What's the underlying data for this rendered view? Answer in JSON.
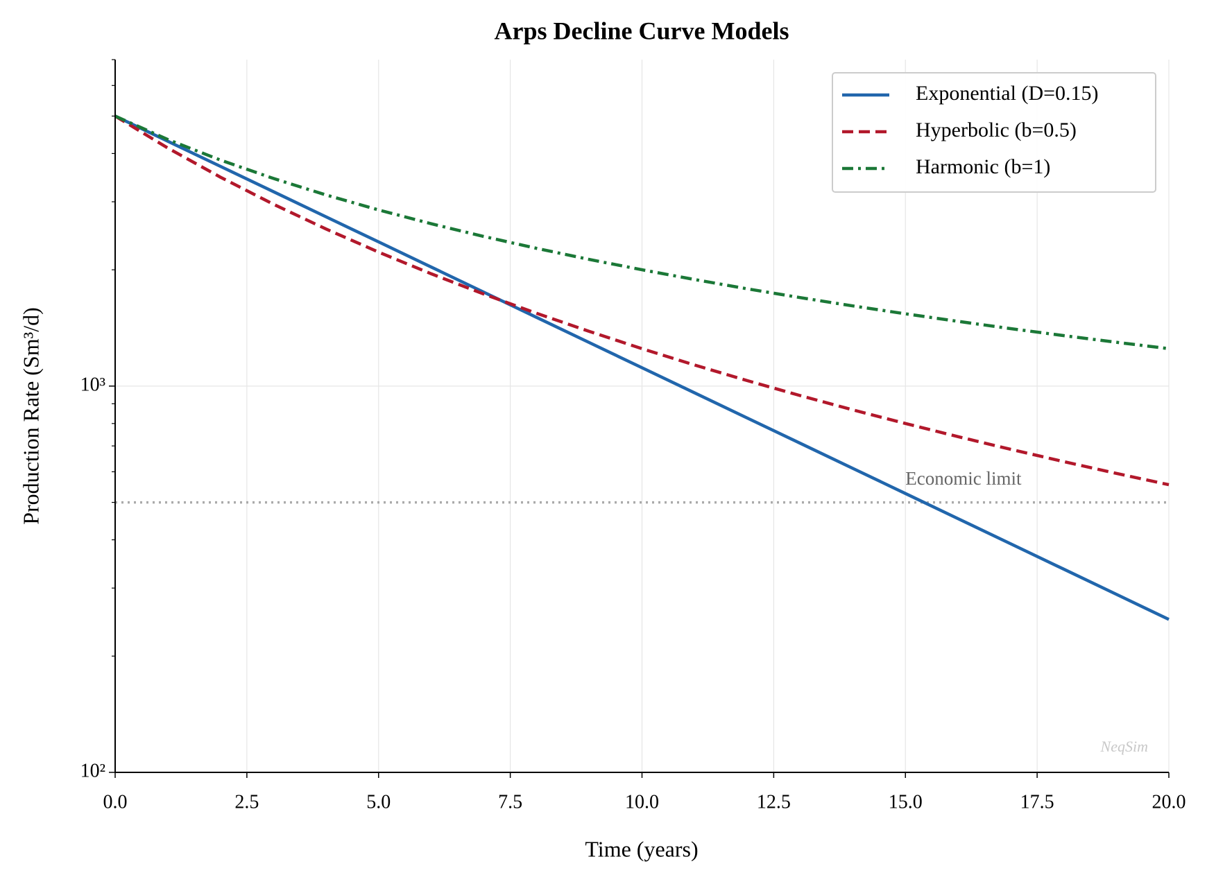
{
  "chart_data": {
    "type": "line",
    "title": "Arps Decline Curve Models",
    "xlabel": "Time (years)",
    "ylabel": "Production Rate (Sm³/d)",
    "x": [
      0,
      1,
      2,
      3,
      4,
      5,
      6,
      7,
      8,
      9,
      10,
      11,
      12,
      13,
      14,
      15,
      16,
      17,
      18,
      19,
      20
    ],
    "series": [
      {
        "name": "Exponential (D=0.15)",
        "color": "#2166ac",
        "linestyle": "solid",
        "values": [
          5000,
          4303.5,
          3704.1,
          3188.1,
          2744.1,
          2361.8,
          2032.8,
          1749.7,
          1506.0,
          1296.2,
          1115.7,
          960.2,
          826.5,
          711.4,
          612.3,
          527.0,
          453.6,
          390.4,
          336.0,
          289.2,
          248.9
        ]
      },
      {
        "name": "Hyperbolic (b=0.5)",
        "color": "#b2182b",
        "linestyle": "dashed",
        "values": [
          5000,
          4132.2,
          3472.2,
          2958.6,
          2551.0,
          2222.2,
          1953.1,
          1730.1,
          1543.2,
          1385.0,
          1250,
          1133.8,
          1033.1,
          945.2,
          868.1,
          800,
          739.6,
          685.9,
          637.8,
          594.5,
          555.6
        ]
      },
      {
        "name": "Harmonic (b=1)",
        "color": "#1b7837",
        "linestyle": "dashdot",
        "values": [
          5000,
          4347.8,
          3846.2,
          3448.3,
          3125,
          2857.1,
          2631.6,
          2439.0,
          2272.7,
          2127.7,
          2000,
          1886.8,
          1785.7,
          1694.9,
          1612.9,
          1538.5,
          1470.6,
          1408.5,
          1351.4,
          1298.7,
          1250
        ]
      }
    ],
    "xlim": [
      0,
      20
    ],
    "xticks": [
      {
        "value": 0,
        "label": "0.0"
      },
      2.5,
      {
        "value": 5,
        "label": "5.0"
      },
      7.5,
      {
        "value": 10,
        "label": "10.0"
      },
      12.5,
      {
        "value": 15,
        "label": "15.0"
      },
      17.5,
      {
        "value": 20,
        "label": "20.0"
      }
    ],
    "ylim": [
      100,
      7000
    ],
    "ylog": true,
    "yticks": [
      {
        "value": 100,
        "label": "10²"
      },
      {
        "value": 1000,
        "label": "10³"
      }
    ],
    "yminorticks": [
      200,
      300,
      400,
      500,
      600,
      700,
      800,
      900,
      2000,
      3000,
      4000,
      5000,
      6000,
      7000
    ],
    "grid": true,
    "legend": "upper right",
    "hline": {
      "value": 500,
      "label": "Economic limit",
      "color": "#aaaaaa"
    },
    "watermark": "NeqSim"
  }
}
